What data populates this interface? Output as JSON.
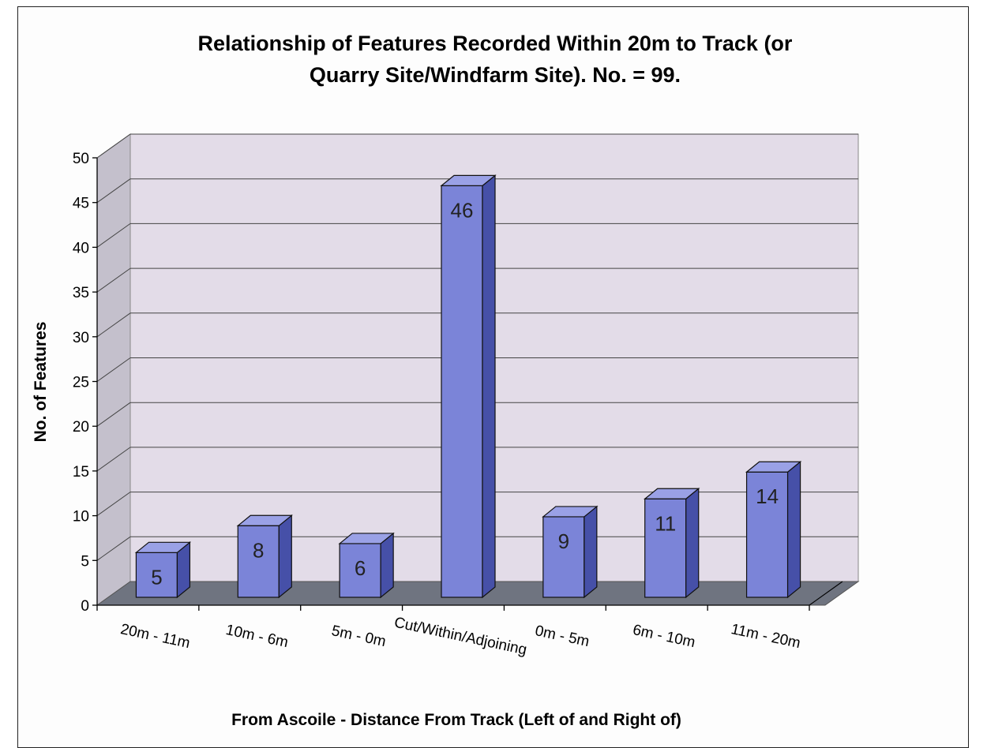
{
  "chart_data": {
    "type": "bar",
    "title_lines": [
      "Relationship of Features Recorded Within 20m to Track (or",
      "Quarry Site/Windfarm Site).  No. = 99."
    ],
    "xlabel": "From Ascoile - Distance From Track (Left of and Right of)",
    "ylabel": "No. of Features",
    "categories": [
      "20m - 11m",
      "10m - 6m",
      "5m - 0m",
      "Cut/Within/Adjoining",
      "0m - 5m",
      "6m - 10m",
      "11m - 20m"
    ],
    "category_lines": [
      [
        "20m - 11m"
      ],
      [
        "10m - 6m"
      ],
      [
        "5m - 0m"
      ],
      [
        "Cut/Within/Adjoining"
      ],
      [
        "0m - 5m"
      ],
      [
        "6m - 10m"
      ],
      [
        "11m - 20m"
      ]
    ],
    "values": [
      5,
      8,
      6,
      46,
      9,
      11,
      14
    ],
    "data_labels": [
      "5",
      "8",
      "6",
      "46",
      "9",
      "11",
      "14"
    ],
    "ylim": [
      0,
      50
    ],
    "yticks": [
      "0",
      "5",
      "10",
      "15",
      "20",
      "25",
      "30",
      "35",
      "40",
      "45",
      "50"
    ],
    "grid": true,
    "style": "3d-column",
    "colors": {
      "bar_front": "#7b84d8",
      "bar_side": "#4650a8",
      "bar_top": "#9aa1e6",
      "bar_edge": "#111111",
      "back_wall": "#e3dce8",
      "side_wall": "#c4c0cc",
      "floor": "#6f7480",
      "grid": "#444444"
    }
  }
}
